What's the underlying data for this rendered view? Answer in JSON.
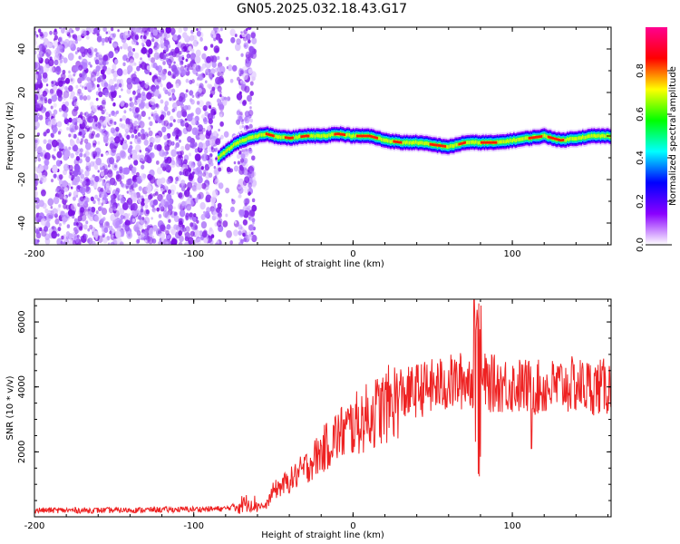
{
  "title": "GN05.2025.032.18.43.G17",
  "chart_data": [
    {
      "type": "heatmap",
      "name": "spectrogram",
      "xlabel": "Height of straight line (km)",
      "ylabel": "Frequency (Hz)",
      "xlim": [
        -200,
        162
      ],
      "ylim": [
        -50,
        50
      ],
      "xticks": [
        -200,
        -100,
        0,
        100
      ],
      "yticks": [
        -40,
        -20,
        0,
        20,
        40
      ],
      "colorbar": {
        "label": "Normalized spectral amplitude",
        "range": [
          0,
          1
        ],
        "ticks": [
          0.0,
          0.2,
          0.4,
          0.6,
          0.8
        ],
        "colors": [
          "#ffffff",
          "#8a00ff",
          "#0000ff",
          "#00ffff",
          "#00ff00",
          "#ffff00",
          "#ff0000",
          "#ff0090"
        ]
      },
      "trace": {
        "x": [
          -85,
          -80,
          -75,
          -70,
          -65,
          -60,
          -55,
          -50,
          -40,
          -30,
          -20,
          -10,
          0,
          10,
          20,
          30,
          40,
          50,
          60,
          70,
          80,
          90,
          100,
          110,
          120,
          130,
          140,
          150,
          162
        ],
        "y": [
          -10,
          -7,
          -4,
          -2,
          -1,
          0,
          1,
          0,
          -1,
          0,
          0,
          1,
          0,
          0,
          -2,
          -3,
          -3,
          -4,
          -5,
          -3,
          -3,
          -3,
          -2,
          -1,
          0,
          -2,
          -1,
          0,
          0
        ]
      },
      "noise_region_km": [
        -200,
        -62
      ]
    },
    {
      "type": "line",
      "name": "snr",
      "xlabel": "Height of straight line (km)",
      "ylabel": "SNR (10 * v/v)",
      "xlim": [
        -200,
        162
      ],
      "ylim": [
        0,
        6700
      ],
      "xticks": [
        -200,
        -100,
        0,
        100
      ],
      "yticks": [
        2000,
        4000,
        6000
      ],
      "color": "#ee2222",
      "envelope": {
        "x": [
          -200,
          -150,
          -100,
          -80,
          -65,
          -55,
          -50,
          -40,
          -30,
          -20,
          -10,
          0,
          10,
          20,
          30,
          40,
          50,
          60,
          70,
          75,
          80,
          85,
          90,
          100,
          110,
          120,
          130,
          140,
          150,
          160,
          162
        ],
        "y": [
          200,
          200,
          230,
          250,
          450,
          300,
          800,
          1100,
          1500,
          2000,
          2500,
          2800,
          3100,
          3400,
          3700,
          3900,
          4000,
          4100,
          4200,
          4250,
          4200,
          4100,
          4100,
          4050,
          4000,
          3950,
          4050,
          4050,
          4000,
          4000,
          4000
        ]
      },
      "spike": {
        "x": 78,
        "max": 6700,
        "min": 1200
      }
    }
  ]
}
